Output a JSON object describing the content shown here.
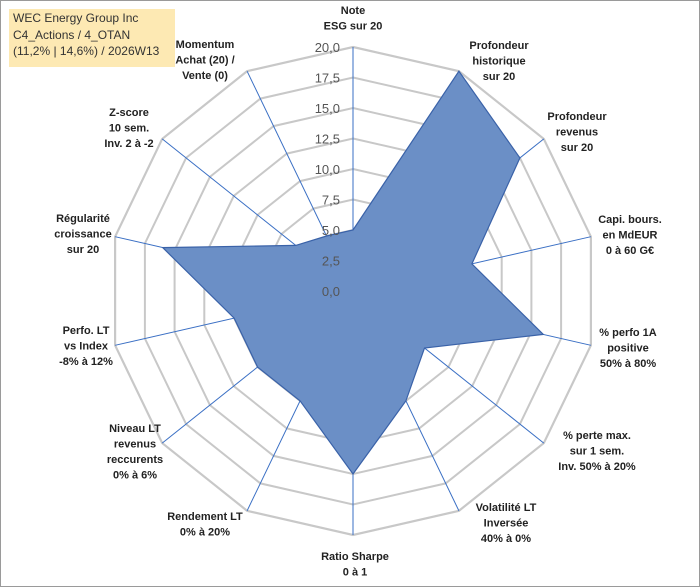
{
  "header": {
    "line1": "WEC Energy Group Inc",
    "line2": "C4_Actions / 4_OTAN",
    "line3": "(11,2% | 14,6%) / 2026W13"
  },
  "colors": {
    "fill": "#6b8fc6",
    "stroke": "#3a62a8",
    "spoke": "#3a6fc4",
    "grid": "#c8c8c8",
    "title_bg": "#fde9b3"
  },
  "chart_data": {
    "type": "radar",
    "r_min": 0,
    "r_max": 20,
    "r_step": 2.5,
    "tick_labels": [
      "0,0",
      "2,5",
      "5,0",
      "7,5",
      "10,0",
      "12,5",
      "15,0",
      "17,5",
      "20,0"
    ],
    "axes": [
      {
        "label": [
          "Note",
          "ESG sur 20"
        ]
      },
      {
        "label": [
          "Profondeur",
          "historique",
          "sur 20"
        ]
      },
      {
        "label": [
          "Profondeur",
          "revenus",
          "sur 20"
        ]
      },
      {
        "label": [
          "Capi. bours.",
          "en MdEUR",
          "0 à 60 G€"
        ]
      },
      {
        "label": [
          "% perfo 1A",
          "positive",
          "50% à 80%"
        ]
      },
      {
        "label": [
          "% perte max.",
          "sur 1 sem.",
          "Inv. 50% à 20%"
        ]
      },
      {
        "label": [
          "Volatilité LT",
          "Inversée",
          "40% à 0%"
        ]
      },
      {
        "label": [
          "Ratio Sharpe",
          "0 à 1"
        ]
      },
      {
        "label": [
          "Rendement LT",
          "0% à 20%"
        ]
      },
      {
        "label": [
          "Niveau LT",
          "revenus",
          "reccurents",
          "0% à 6%"
        ]
      },
      {
        "label": [
          "Perfo. LT",
          "vs Index",
          "-8% à 12%"
        ]
      },
      {
        "label": [
          "Régularité",
          "croissance",
          "sur 20"
        ]
      },
      {
        "label": [
          "Z-score",
          "10 sem.",
          "Inv. 2 à -2"
        ]
      },
      {
        "label": [
          "Momentum",
          "Achat (20) /",
          "Vente (0)"
        ]
      }
    ],
    "series": [
      {
        "values": [
          5.0,
          20.0,
          17.5,
          10.0,
          16.0,
          7.5,
          10.0,
          15.0,
          10.0,
          10.0,
          10.0,
          16.0,
          6.0,
          5.0
        ]
      }
    ]
  }
}
